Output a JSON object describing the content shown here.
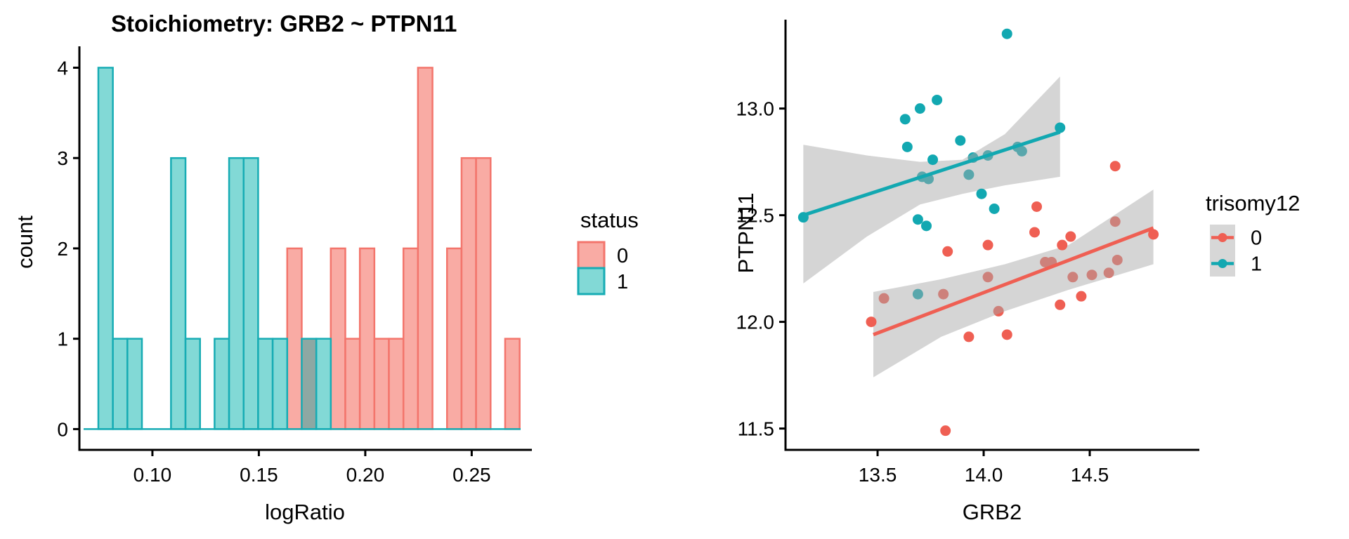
{
  "figure": {
    "background": "#FFFFFF"
  },
  "colors": {
    "red_stroke": "#F3756C",
    "red_fill": "#F9ABA4",
    "teal_stroke": "#17ACB4",
    "teal_fill": "#82D9D6",
    "overlap_fill": "#8DA8A3",
    "point_red": "#EF5F53",
    "point_teal": "#12A8B1",
    "band": "rgba(168,168,168,0.48)",
    "legend_key_bg": "#D7D7D7",
    "axis": "#000000"
  },
  "chart_data": [
    {
      "id": "histogram",
      "type": "bar",
      "title": "Stoichiometry: GRB2 ~ PTPN11",
      "xlabel": "logRatio",
      "ylabel": "count",
      "legend": {
        "title": "status",
        "entries": [
          {
            "label": "0",
            "key": "red"
          },
          {
            "label": "1",
            "key": "teal"
          }
        ]
      },
      "x_ticks": [
        {
          "v": 0.1,
          "label": "0.10"
        },
        {
          "v": 0.15,
          "label": "0.15"
        },
        {
          "v": 0.2,
          "label": "0.20"
        },
        {
          "v": 0.25,
          "label": "0.25"
        }
      ],
      "y_ticks": [
        {
          "v": 0,
          "label": "0"
        },
        {
          "v": 1,
          "label": "1"
        },
        {
          "v": 2,
          "label": "2"
        },
        {
          "v": 3,
          "label": "3"
        },
        {
          "v": 4,
          "label": "4"
        }
      ],
      "xlim": [
        0.0657,
        0.2776
      ],
      "ylim": [
        -0.23,
        4.19
      ],
      "bin_start": 0.0746,
      "bin_width": 0.006825,
      "baseline_value": 0,
      "bins": [
        {
          "i": 0,
          "status": "1",
          "count": 4
        },
        {
          "i": 1,
          "status": "1",
          "count": 1
        },
        {
          "i": 2,
          "status": "1",
          "count": 1
        },
        {
          "i": 5,
          "status": "1",
          "count": 3
        },
        {
          "i": 6,
          "status": "1",
          "count": 1
        },
        {
          "i": 8,
          "status": "1",
          "count": 1
        },
        {
          "i": 9,
          "status": "1",
          "count": 3
        },
        {
          "i": 10,
          "status": "1",
          "count": 3
        },
        {
          "i": 11,
          "status": "1",
          "count": 1
        },
        {
          "i": 12,
          "status": "1",
          "count": 1
        },
        {
          "i": 13,
          "status": "0",
          "count": 2
        },
        {
          "i": 14,
          "status": "overlap",
          "count": 1
        },
        {
          "i": 15,
          "status": "1",
          "count": 1
        },
        {
          "i": 16,
          "status": "0",
          "count": 2
        },
        {
          "i": 17,
          "status": "0",
          "count": 1
        },
        {
          "i": 18,
          "status": "0",
          "count": 2
        },
        {
          "i": 19,
          "status": "0",
          "count": 1
        },
        {
          "i": 20,
          "status": "0",
          "count": 1
        },
        {
          "i": 21,
          "status": "0",
          "count": 2
        },
        {
          "i": 22,
          "status": "0",
          "count": 4
        },
        {
          "i": 24,
          "status": "0",
          "count": 2
        },
        {
          "i": 25,
          "status": "0",
          "count": 3
        },
        {
          "i": 26,
          "status": "0",
          "count": 3
        },
        {
          "i": 28,
          "status": "0",
          "count": 1
        }
      ]
    },
    {
      "id": "scatter",
      "type": "scatter",
      "xlabel": "GRB2",
      "ylabel": "PTPN11",
      "legend": {
        "title": "trisomy12",
        "entries": [
          {
            "label": "0",
            "key": "red"
          },
          {
            "label": "1",
            "key": "teal"
          }
        ]
      },
      "x_ticks": [
        {
          "v": 13.5,
          "label": "13.5"
        },
        {
          "v": 14.0,
          "label": "14.0"
        },
        {
          "v": 14.5,
          "label": "14.5"
        }
      ],
      "y_ticks": [
        {
          "v": 11.5,
          "label": "11.5"
        },
        {
          "v": 12.0,
          "label": "12.0"
        },
        {
          "v": 12.5,
          "label": "12.5"
        },
        {
          "v": 13.0,
          "label": "13.0"
        }
      ],
      "xlim": [
        13.066,
        15.01
      ],
      "ylim": [
        11.4,
        13.41
      ],
      "series": [
        {
          "name": "0",
          "key": "red",
          "points": [
            [
              13.47,
              12.0
            ],
            [
              13.53,
              12.11
            ],
            [
              13.81,
              12.13
            ],
            [
              13.82,
              11.49
            ],
            [
              13.83,
              12.33
            ],
            [
              13.93,
              11.93
            ],
            [
              14.02,
              12.21
            ],
            [
              14.02,
              12.36
            ],
            [
              14.07,
              12.05
            ],
            [
              14.11,
              11.94
            ],
            [
              14.24,
              12.42
            ],
            [
              14.25,
              12.54
            ],
            [
              14.29,
              12.28
            ],
            [
              14.32,
              12.28
            ],
            [
              14.36,
              12.08
            ],
            [
              14.37,
              12.36
            ],
            [
              14.41,
              12.4
            ],
            [
              14.42,
              12.21
            ],
            [
              14.46,
              12.12
            ],
            [
              14.51,
              12.22
            ],
            [
              14.59,
              12.23
            ],
            [
              14.62,
              12.47
            ],
            [
              14.62,
              12.73
            ],
            [
              14.63,
              12.29
            ],
            [
              14.8,
              12.41
            ]
          ],
          "trend": {
            "x1": 13.48,
            "y1": 11.94,
            "x2": 14.8,
            "y2": 12.44
          },
          "band": {
            "x": [
              13.48,
              13.8,
              14.1,
              14.4,
              14.8
            ],
            "top": [
              12.14,
              12.2,
              12.27,
              12.36,
              12.62
            ],
            "bottom": [
              11.74,
              11.93,
              12.05,
              12.15,
              12.27
            ]
          }
        },
        {
          "name": "1",
          "key": "teal",
          "points": [
            [
              13.15,
              12.49
            ],
            [
              13.63,
              12.95
            ],
            [
              13.64,
              12.82
            ],
            [
              13.69,
              12.13
            ],
            [
              13.69,
              12.48
            ],
            [
              13.7,
              13.0
            ],
            [
              13.71,
              12.68
            ],
            [
              13.73,
              12.45
            ],
            [
              13.74,
              12.67
            ],
            [
              13.76,
              12.76
            ],
            [
              13.78,
              13.04
            ],
            [
              13.89,
              12.85
            ],
            [
              13.93,
              12.69
            ],
            [
              13.95,
              12.77
            ],
            [
              13.99,
              12.6
            ],
            [
              14.02,
              12.78
            ],
            [
              14.05,
              12.53
            ],
            [
              14.11,
              13.35
            ],
            [
              14.16,
              12.82
            ],
            [
              14.18,
              12.8
            ],
            [
              14.36,
              12.91
            ]
          ],
          "trend": {
            "x1": 13.15,
            "y1": 12.5,
            "x2": 14.36,
            "y2": 12.89
          },
          "band": {
            "x": [
              13.15,
              13.45,
              13.7,
              13.9,
              14.1,
              14.36
            ],
            "top": [
              12.83,
              12.78,
              12.75,
              12.76,
              12.88,
              13.15
            ],
            "bottom": [
              12.18,
              12.4,
              12.55,
              12.6,
              12.64,
              12.68
            ]
          }
        }
      ]
    }
  ]
}
